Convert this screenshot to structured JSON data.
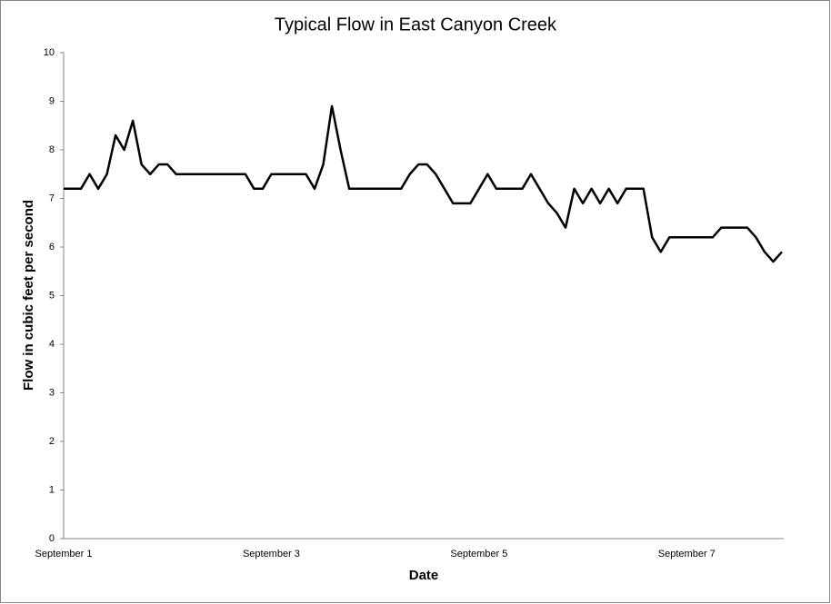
{
  "chart_data": {
    "type": "line",
    "title": "Typical Flow in East Canyon Creek",
    "xlabel": "Date",
    "ylabel": "Flow in cubic feet per second",
    "categories": [
      "September 1",
      null,
      null,
      null,
      null,
      null,
      null,
      null,
      null,
      null,
      null,
      null,
      null,
      null,
      null,
      null,
      null,
      null,
      null,
      null,
      null,
      null,
      null,
      null,
      "September 3",
      null,
      null,
      null,
      null,
      null,
      null,
      null,
      null,
      null,
      null,
      null,
      null,
      null,
      null,
      null,
      null,
      null,
      null,
      null,
      null,
      null,
      null,
      null,
      "September 5",
      null,
      null,
      null,
      null,
      null,
      null,
      null,
      null,
      null,
      null,
      null,
      null,
      null,
      null,
      null,
      null,
      null,
      null,
      null,
      null,
      null,
      null,
      null,
      "September 7",
      null,
      null,
      null,
      null,
      null,
      null,
      null,
      null,
      null,
      null,
      null
    ],
    "series": [
      {
        "name": "Flow",
        "color": "#000000",
        "values": [
          7.2,
          7.2,
          7.2,
          7.5,
          7.2,
          7.5,
          8.3,
          8.0,
          8.6,
          7.7,
          7.5,
          7.7,
          7.7,
          7.5,
          7.5,
          7.5,
          7.5,
          7.5,
          7.5,
          7.5,
          7.5,
          7.5,
          7.2,
          7.2,
          7.5,
          7.5,
          7.5,
          7.5,
          7.5,
          7.2,
          7.7,
          8.9,
          8.0,
          7.2,
          7.2,
          7.2,
          7.2,
          7.2,
          7.2,
          7.2,
          7.5,
          7.7,
          7.7,
          7.5,
          7.2,
          6.9,
          6.9,
          6.9,
          7.2,
          7.5,
          7.2,
          7.2,
          7.2,
          7.2,
          7.5,
          7.2,
          6.9,
          6.7,
          6.4,
          7.2,
          6.9,
          7.2,
          6.9,
          7.2,
          6.9,
          7.2,
          7.2,
          7.2,
          6.2,
          5.9,
          6.2,
          6.2,
          6.2,
          6.2,
          6.2,
          6.2,
          6.4,
          6.4,
          6.4,
          6.4,
          6.2,
          5.9,
          5.7,
          5.9
        ]
      }
    ],
    "ylim": [
      0,
      10
    ],
    "yticks": [
      0,
      1,
      2,
      3,
      4,
      5,
      6,
      7,
      8,
      9,
      10
    ],
    "grid": false
  }
}
